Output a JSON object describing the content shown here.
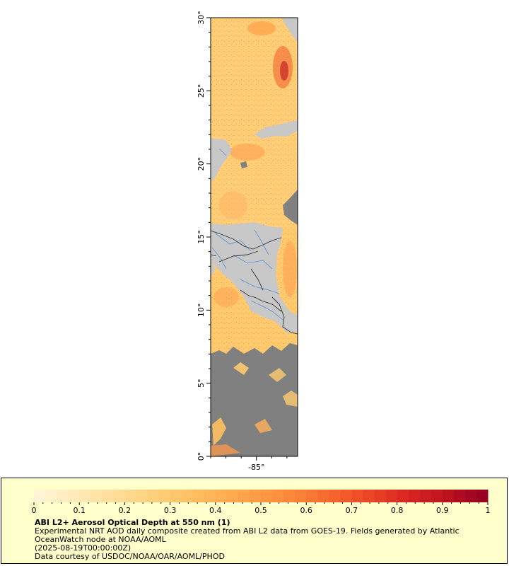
{
  "map": {
    "lat_ticks": [
      "0°",
      "5°",
      "10°",
      "15°",
      "20°",
      "25°",
      "30°"
    ],
    "lon_ticks": [
      "-85°"
    ],
    "extent": {
      "lat_min": 0,
      "lat_max": 30,
      "lon_min": -88,
      "lon_max": -82.3
    },
    "colors": {
      "land": "#c8c8c8",
      "cloud": "#808080",
      "aod_low": "#ffe9b0",
      "aod_mid": "#ff8e3a",
      "aod_high": "#990022",
      "rivers": "#5b8fd6",
      "borders": "#333333"
    }
  },
  "legend": {
    "ticks": [
      "0",
      "0.1",
      "0.2",
      "0.3",
      "0.4",
      "0.5",
      "0.6",
      "0.7",
      "0.8",
      "0.9",
      "1"
    ],
    "range": [
      0,
      1
    ],
    "title": "ABI L2+ Aerosol Optical Depth at 550 nm (1)",
    "description_line1": "Experimental NRT AOD daily composite created from ABI L2 data from GOES-19. Fields generated by Atlantic",
    "description_line2": "OceanWatch node at NOAA/AOML",
    "time": "(2025-08-19T00:00:00Z)",
    "courtesy": "Data courtesy of USDOC/NOAA/OAR/AOML/PHOD",
    "colors": [
      "#fff5d6",
      "#ffe9b5",
      "#ffdc95",
      "#ffcd75",
      "#ffbb5e",
      "#ffa64c",
      "#ff8e3d",
      "#f86f30",
      "#ee4d27",
      "#dc2a22",
      "#c0141f",
      "#990022"
    ]
  }
}
